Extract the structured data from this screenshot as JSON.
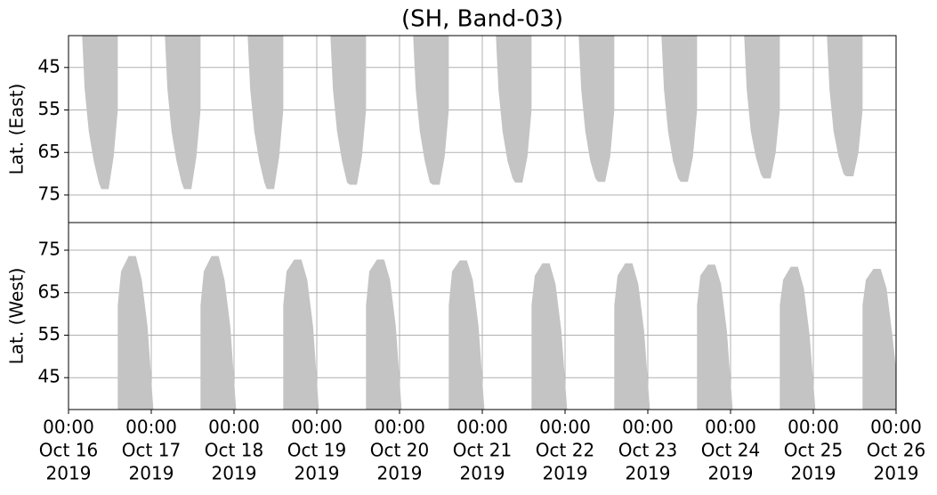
{
  "chart_data": [
    {
      "type": "area",
      "title": "(SH, Band-03)",
      "ylabel": "Lat. (East)",
      "ylim": [
        81.5,
        37.5
      ],
      "yticks": [
        45,
        55,
        65,
        75
      ],
      "grid": true,
      "series": [
        {
          "color": "#c4c4c4",
          "x": [
            0.17,
            0.2,
            0.25,
            0.31,
            0.37,
            0.4,
            0.48,
            0.54,
            0.59,
            0.59,
            null,
            1.17,
            1.2,
            1.25,
            1.31,
            1.37,
            1.4,
            1.48,
            1.54,
            1.59,
            1.59,
            null,
            2.17,
            2.2,
            2.25,
            2.31,
            2.37,
            2.4,
            2.48,
            2.54,
            2.59,
            2.59,
            null,
            3.17,
            3.2,
            3.25,
            3.31,
            3.37,
            3.4,
            3.48,
            3.54,
            3.59,
            3.59,
            null,
            4.17,
            4.2,
            4.25,
            4.31,
            4.37,
            4.4,
            4.48,
            4.54,
            4.59,
            4.59,
            null,
            5.17,
            5.2,
            5.25,
            5.31,
            5.37,
            5.4,
            5.48,
            5.54,
            5.59,
            5.59,
            null,
            6.17,
            6.2,
            6.25,
            6.31,
            6.37,
            6.4,
            6.48,
            6.54,
            6.59,
            6.59,
            null,
            7.17,
            7.2,
            7.25,
            7.31,
            7.37,
            7.4,
            7.48,
            7.54,
            7.59,
            7.59,
            null,
            8.17,
            8.2,
            8.25,
            8.31,
            8.37,
            8.4,
            8.48,
            8.54,
            8.59,
            8.59,
            null,
            9.17,
            9.2,
            9.25,
            9.31,
            9.37,
            9.4,
            9.48,
            9.54,
            9.59,
            9.59
          ],
          "values": [
            37.5,
            50,
            60,
            67,
            72,
            73.5,
            73.5,
            66,
            55,
            37.5,
            null,
            37.5,
            50,
            60,
            67,
            72,
            73.5,
            73.5,
            66,
            55,
            37.5,
            null,
            37.5,
            50,
            60,
            67,
            72,
            73.5,
            73.5,
            66,
            55,
            37.5,
            null,
            37.5,
            50,
            60,
            67,
            72,
            72.5,
            72.5,
            66,
            55,
            37.5,
            null,
            37.5,
            50,
            60,
            67,
            72,
            72.5,
            72.5,
            66,
            55,
            37.5,
            null,
            37.5,
            50,
            60,
            67,
            71,
            72,
            72,
            66,
            55,
            37.5,
            null,
            37.5,
            50,
            60,
            67,
            71,
            71.8,
            71.8,
            66,
            55,
            37.5,
            null,
            37.5,
            50,
            60,
            67,
            71,
            71.8,
            71.8,
            66,
            55,
            37.5,
            null,
            37.5,
            50,
            60,
            66,
            70,
            71,
            71,
            65,
            55,
            37.5,
            null,
            37.5,
            50,
            60,
            66,
            70,
            70.5,
            70.5,
            65,
            55,
            37.5
          ]
        }
      ]
    },
    {
      "type": "area",
      "ylabel": "Lat. (West)",
      "ylim": [
        37.5,
        81.5
      ],
      "yticks": [
        45,
        55,
        65,
        75
      ],
      "grid": true,
      "xlim": [
        0,
        10
      ],
      "xticks": [
        {
          "value": 0,
          "label": [
            "00:00",
            "Oct 16",
            "2019"
          ]
        },
        {
          "value": 1,
          "label": [
            "00:00",
            "Oct 17",
            "2019"
          ]
        },
        {
          "value": 2,
          "label": [
            "00:00",
            "Oct 18",
            "2019"
          ]
        },
        {
          "value": 3,
          "label": [
            "00:00",
            "Oct 19",
            "2019"
          ]
        },
        {
          "value": 4,
          "label": [
            "00:00",
            "Oct 20",
            "2019"
          ]
        },
        {
          "value": 5,
          "label": [
            "00:00",
            "Oct 21",
            "2019"
          ]
        },
        {
          "value": 6,
          "label": [
            "00:00",
            "Oct 22",
            "2019"
          ]
        },
        {
          "value": 7,
          "label": [
            "00:00",
            "Oct 23",
            "2019"
          ]
        },
        {
          "value": 8,
          "label": [
            "00:00",
            "Oct 24",
            "2019"
          ]
        },
        {
          "value": 9,
          "label": [
            "00:00",
            "Oct 25",
            "2019"
          ]
        },
        {
          "value": 10,
          "label": [
            "00:00",
            "Oct 26",
            "2019"
          ]
        }
      ],
      "series": [
        {
          "color": "#c4c4c4",
          "x": [
            0.6,
            0.6,
            0.64,
            0.73,
            0.81,
            0.88,
            0.95,
            1.02,
            null,
            1.6,
            1.6,
            1.64,
            1.73,
            1.81,
            1.88,
            1.95,
            2.02,
            null,
            2.6,
            2.6,
            2.64,
            2.73,
            2.81,
            2.88,
            2.95,
            3.02,
            null,
            3.6,
            3.6,
            3.64,
            3.73,
            3.81,
            3.88,
            3.95,
            4.02,
            null,
            4.6,
            4.6,
            4.64,
            4.73,
            4.81,
            4.88,
            4.95,
            5.02,
            null,
            5.6,
            5.6,
            5.64,
            5.73,
            5.81,
            5.88,
            5.95,
            6.02,
            null,
            6.6,
            6.6,
            6.64,
            6.73,
            6.81,
            6.88,
            6.95,
            7.02,
            null,
            7.6,
            7.6,
            7.64,
            7.73,
            7.81,
            7.88,
            7.95,
            8.02,
            null,
            8.6,
            8.6,
            8.64,
            8.73,
            8.81,
            8.88,
            8.95,
            9.02,
            null,
            9.6,
            9.6,
            9.64,
            9.73,
            9.81,
            9.88,
            9.95,
            10
          ],
          "values": [
            37.5,
            62,
            70,
            73.5,
            73.5,
            68,
            57,
            37.5,
            null,
            37.5,
            62,
            70,
            73.5,
            73.5,
            68,
            57,
            37.5,
            null,
            37.5,
            62,
            70,
            72.7,
            72.7,
            68,
            57,
            37.5,
            null,
            37.5,
            62,
            70,
            72.7,
            72.7,
            68,
            57,
            37.5,
            null,
            37.5,
            62,
            70,
            72.5,
            72.5,
            68,
            57,
            37.5,
            null,
            37.5,
            62,
            69,
            71.8,
            71.8,
            67,
            56,
            37.5,
            null,
            37.5,
            62,
            69,
            71.8,
            71.8,
            67,
            56,
            37.5,
            null,
            37.5,
            62,
            69,
            71.5,
            71.5,
            67,
            56,
            37.5,
            null,
            37.5,
            62,
            68,
            71,
            71,
            66,
            55,
            37.5,
            null,
            37.5,
            62,
            68,
            70.5,
            70.5,
            66,
            55,
            46
          ]
        }
      ]
    }
  ]
}
